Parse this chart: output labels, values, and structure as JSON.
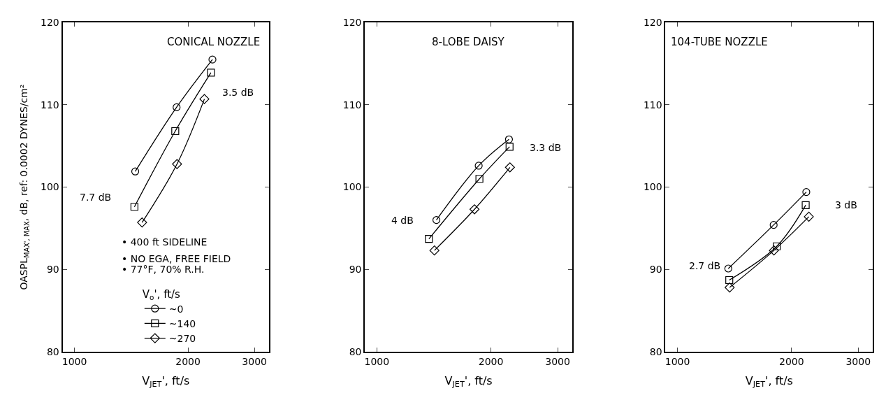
{
  "chart_data": [
    {
      "type": "line",
      "title": "CONICAL NOZZLE",
      "xlabel": "V$_{JET}$', ft/s",
      "ylabel": "OASPL$_{MAX', MAX}$, dB, ref: 0.0002 DYNES/cm²",
      "log": "x",
      "xlim": [
        930,
        3280
      ],
      "xticks": [
        1000,
        2000,
        3000
      ],
      "ylim": [
        80,
        120
      ],
      "yticks": [
        80,
        90,
        100,
        110,
        120
      ],
      "legend": "bottom",
      "legend_title": "V$_{o}$', ft/s",
      "annotations": [
        "7.7 dB",
        "3.5 dB",
        "• 400 ft SIDELINE",
        "• NO EGA, FREE FIELD",
        "• 77°F, 70% R.H."
      ],
      "series": [
        {
          "name": "~0",
          "color": "#000000",
          "marker": "circle",
          "x": [
            1449,
            1865,
            2321
          ],
          "values": [
            101.9,
            109.7,
            115.5
          ]
        },
        {
          "name": "~140",
          "color": "#000000",
          "marker": "square",
          "x": [
            1442,
            1850,
            2300
          ],
          "values": [
            97.6,
            106.8,
            113.9
          ]
        },
        {
          "name": "~270",
          "color": "#000000",
          "marker": "diamond",
          "x": [
            1511,
            1870,
            2210
          ],
          "values": [
            95.7,
            102.8,
            110.7
          ]
        }
      ]
    },
    {
      "type": "line",
      "title": "8-LOBE DAISY",
      "xlabel": "V$_{JET}$', ft/s",
      "log": "x",
      "xlim": [
        930,
        3280
      ],
      "xticks": [
        1000,
        2000,
        3000
      ],
      "ylim": [
        80,
        120
      ],
      "yticks": [
        80,
        90,
        100,
        110,
        120
      ],
      "annotations": [
        "4 dB",
        "3.3 dB"
      ],
      "series": [
        {
          "color": "#000000",
          "marker": "circle",
          "x": [
            1436,
            1857,
            2232
          ],
          "values": [
            96.0,
            102.6,
            105.8
          ]
        },
        {
          "color": "#000000",
          "marker": "square",
          "x": [
            1372,
            1865,
            2240
          ],
          "values": [
            93.7,
            101.0,
            104.9
          ]
        },
        {
          "color": "#000000",
          "marker": "diamond",
          "x": [
            1419,
            1810,
            2245
          ],
          "values": [
            92.3,
            97.3,
            102.4
          ]
        }
      ]
    },
    {
      "type": "line",
      "title": "104-TUBE NOZZLE",
      "xlabel": "V$_{JET}$', ft/s",
      "log": "x",
      "xlim": [
        930,
        3280
      ],
      "xticks": [
        1000,
        2000,
        3000
      ],
      "ylim": [
        80,
        120
      ],
      "yticks": [
        80,
        90,
        100,
        110,
        120
      ],
      "annotations": [
        "2.7 dB",
        "3 dB"
      ],
      "series": [
        {
          "color": "#000000",
          "marker": "circle",
          "x": [
            1362,
            1794,
            2188
          ],
          "values": [
            90.1,
            95.4,
            99.4
          ]
        },
        {
          "color": "#000000",
          "marker": "square",
          "x": [
            1370,
            1828,
            2180
          ],
          "values": [
            88.7,
            92.8,
            97.8
          ]
        },
        {
          "color": "#000000",
          "marker": "diamond",
          "x": [
            1373,
            1797,
            2222
          ],
          "values": [
            87.8,
            92.3,
            96.4
          ]
        }
      ]
    }
  ]
}
